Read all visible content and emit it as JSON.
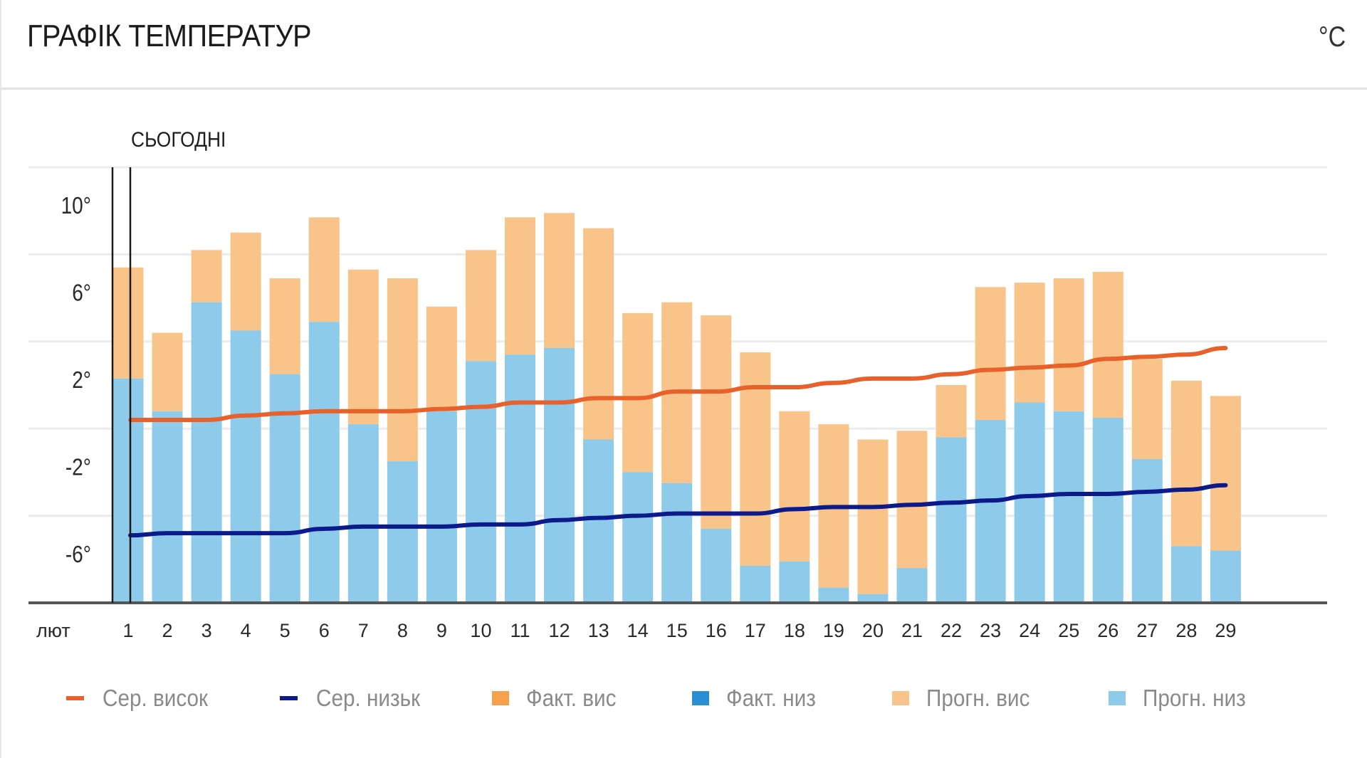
{
  "header": {
    "title": "ГРАФІК ТЕМПЕРАТУР",
    "unit": "°C"
  },
  "today_label": "СЬОГОДНІ",
  "colors": {
    "avg_high": "#e8612a",
    "avg_low": "#0d1a8c",
    "actual_high": "#f5a04a",
    "actual_low": "#2a8fd0",
    "forecast_high": "#f8c48a",
    "forecast_low": "#8ecae9",
    "grid": "#ececec",
    "axis": "#555555"
  },
  "legend": [
    {
      "key": "avg_high",
      "label": "Сер. висок",
      "shape": "line"
    },
    {
      "key": "avg_low",
      "label": "Сер. низьк",
      "shape": "line"
    },
    {
      "key": "actual_high",
      "label": "Факт. вис",
      "shape": "box"
    },
    {
      "key": "actual_low",
      "label": "Факт. низ",
      "shape": "box"
    },
    {
      "key": "forecast_high",
      "label": "Прогн. вис",
      "shape": "box"
    },
    {
      "key": "forecast_low",
      "label": "Прогн. низ",
      "shape": "box"
    }
  ],
  "chart_data": {
    "type": "bar",
    "title": "ГРАФІК ТЕМПЕРАТУР",
    "xlabel": "лют",
    "ylabel": "",
    "unit": "°C",
    "ylim": [
      -8,
      12
    ],
    "gridlines": [
      12,
      8,
      4,
      0,
      -4
    ],
    "yticks": [
      10,
      6,
      2,
      -2,
      -6
    ],
    "ytick_labels": [
      "10°",
      "6°",
      "2°",
      "-2°",
      "-6°"
    ],
    "grid": true,
    "legend_position": "bottom",
    "month_label": "лют",
    "today_index": 0,
    "categories": [
      "1",
      "2",
      "3",
      "4",
      "5",
      "6",
      "7",
      "8",
      "9",
      "10",
      "11",
      "12",
      "13",
      "14",
      "15",
      "16",
      "17",
      "18",
      "19",
      "20",
      "21",
      "22",
      "23",
      "24",
      "25",
      "26",
      "27",
      "28",
      "29"
    ],
    "series": [
      {
        "name": "Прогн. вис",
        "key": "forecast_high",
        "kind": "bar",
        "values": [
          7.4,
          4.4,
          8.2,
          9.0,
          6.9,
          9.7,
          7.3,
          6.9,
          5.6,
          8.2,
          9.7,
          9.9,
          9.2,
          5.3,
          5.8,
          5.2,
          3.5,
          0.8,
          0.2,
          -0.5,
          -0.1,
          2.0,
          6.5,
          6.7,
          6.9,
          7.2,
          3.2,
          2.2,
          1.5
        ]
      },
      {
        "name": "Прогн. низ",
        "key": "forecast_low",
        "kind": "bar",
        "values": [
          2.3,
          0.8,
          5.8,
          4.5,
          2.5,
          4.9,
          0.2,
          -1.5,
          0.8,
          3.1,
          3.4,
          3.7,
          -0.5,
          -2.0,
          -2.5,
          -4.6,
          -6.3,
          -6.1,
          -7.3,
          -7.6,
          -6.4,
          -0.4,
          0.4,
          1.2,
          0.8,
          0.5,
          -1.4,
          -5.4,
          -5.6
        ]
      },
      {
        "name": "Сер. висок",
        "key": "avg_high",
        "kind": "line",
        "values": [
          0.4,
          0.4,
          0.4,
          0.6,
          0.7,
          0.8,
          0.8,
          0.8,
          0.9,
          1.0,
          1.2,
          1.2,
          1.4,
          1.4,
          1.7,
          1.7,
          1.9,
          1.9,
          2.1,
          2.3,
          2.3,
          2.5,
          2.7,
          2.8,
          2.9,
          3.2,
          3.3,
          3.4,
          3.7
        ]
      },
      {
        "name": "Сер. низьк",
        "key": "avg_low",
        "kind": "line",
        "values": [
          -4.9,
          -4.8,
          -4.8,
          -4.8,
          -4.8,
          -4.6,
          -4.5,
          -4.5,
          -4.5,
          -4.4,
          -4.4,
          -4.2,
          -4.1,
          -4.0,
          -3.9,
          -3.9,
          -3.9,
          -3.7,
          -3.6,
          -3.6,
          -3.5,
          -3.4,
          -3.3,
          -3.1,
          -3.0,
          -3.0,
          -2.9,
          -2.8,
          -2.6
        ]
      }
    ]
  }
}
